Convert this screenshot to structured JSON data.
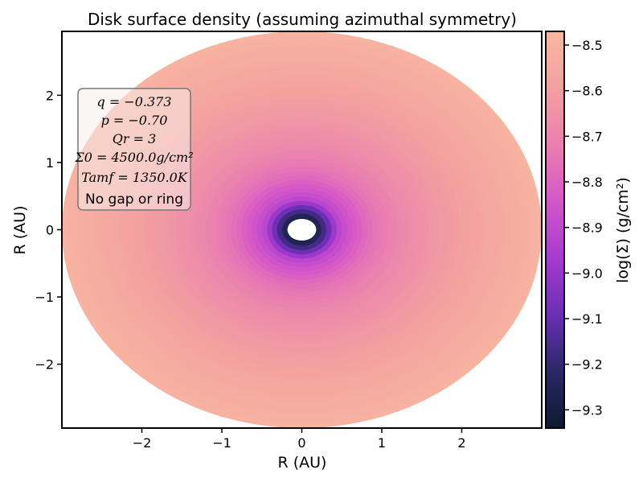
{
  "chart_data": {
    "type": "heatmap",
    "title": "Disk surface density (assuming azimuthal symmetry)",
    "xlabel": "R (AU)",
    "ylabel": "R (AU)",
    "xlim": [
      -3.0,
      3.0
    ],
    "ylim": [
      -2.95,
      2.95
    ],
    "x_ticks": [
      -2,
      -1,
      0,
      1,
      2
    ],
    "x_tick_labels": [
      "−2",
      "−1",
      "0",
      "1",
      "2"
    ],
    "y_ticks": [
      2,
      1,
      0,
      -1,
      -2
    ],
    "y_tick_labels": [
      "2",
      "1",
      "0",
      "−1",
      "−2"
    ],
    "grid": false,
    "colorbar": {
      "label": "log(Σ) (g/cm²)",
      "range": [
        -9.34,
        -8.47
      ],
      "ticks": [
        -8.5,
        -8.6,
        -8.7,
        -8.8,
        -8.9,
        -9.0,
        -9.1,
        -9.2,
        -9.3
      ],
      "tick_labels": [
        "−8.5",
        "−8.6",
        "−8.7",
        "−8.8",
        "−8.9",
        "−9.0",
        "−9.1",
        "−9.2",
        "−9.3"
      ],
      "colors": [
        "#0d1a2f",
        "#2a2866",
        "#6a2fb5",
        "#a83ad0",
        "#d457c8",
        "#ea7fb0",
        "#f3a0a0",
        "#f9b8a0"
      ]
    },
    "disk": {
      "inner_radius_au": 0.18,
      "outer_radius_x_au": 3.0,
      "outer_radius_y_au": 2.95,
      "radial_profile": [
        {
          "r": 0.18,
          "value": -9.33
        },
        {
          "r": 0.3,
          "value": -9.18
        },
        {
          "r": 0.4,
          "value": -9.05
        },
        {
          "r": 0.48,
          "value": -8.92
        },
        {
          "r": 0.62,
          "value": -8.86
        },
        {
          "r": 0.9,
          "value": -8.76
        },
        {
          "r": 1.3,
          "value": -8.68
        },
        {
          "r": 1.8,
          "value": -8.62
        },
        {
          "r": 2.4,
          "value": -8.56
        },
        {
          "r": 3.0,
          "value": -8.5
        }
      ]
    },
    "annotation": {
      "lines": [
        "q = −0.373",
        "p = −0.70",
        "Qr = 3",
        "Σ0 = 4500.0g/cm²",
        "Tamf = 1350.0K"
      ],
      "note": "No gap or ring"
    }
  }
}
